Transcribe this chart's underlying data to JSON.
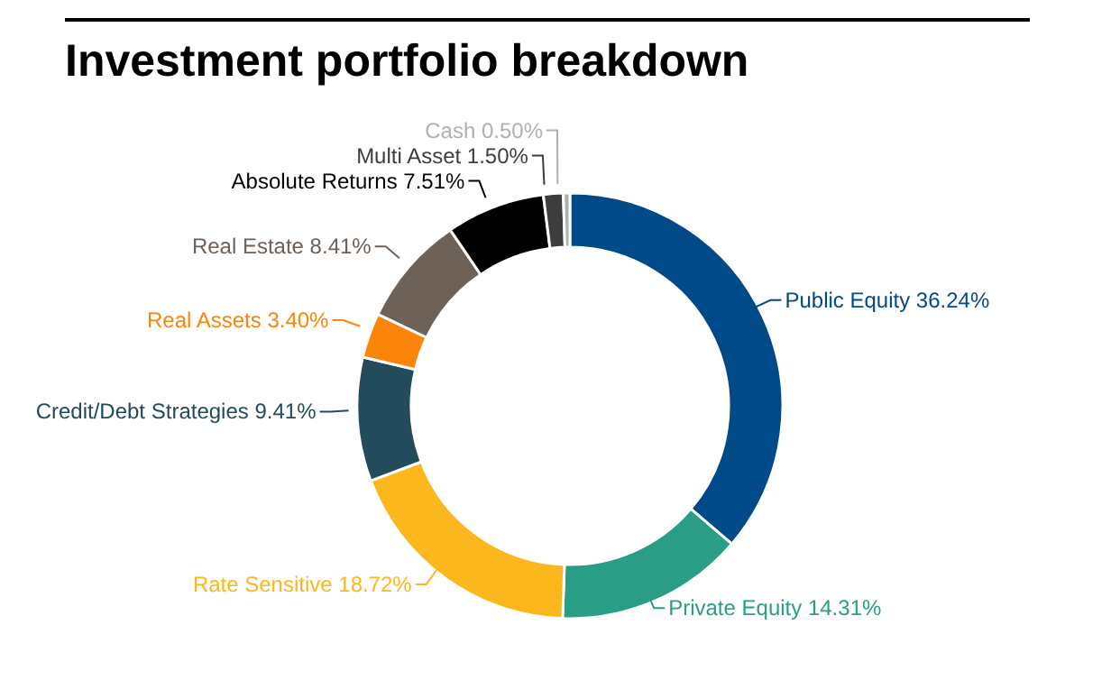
{
  "chart_data": {
    "type": "donut",
    "title": "Investment portfolio breakdown",
    "categories": [
      "Public Equity",
      "Private Equity",
      "Rate Sensitive",
      "Credit/Debt Strategies",
      "Real Assets",
      "Real Estate",
      "Absolute Returns",
      "Multi Asset",
      "Cash"
    ],
    "values": [
      36.24,
      14.31,
      18.72,
      9.41,
      3.4,
      8.41,
      7.51,
      1.5,
      0.5
    ],
    "value_labels": [
      "36.24%",
      "14.31%",
      "18.72%",
      "9.41%",
      "3.40%",
      "8.41%",
      "7.51%",
      "1.50%",
      "0.50%"
    ],
    "colors": [
      "#004a89",
      "#2a9d86",
      "#fcb71c",
      "#234b5b",
      "#fb8508",
      "#6e6158",
      "#000000",
      "#3d3d3d",
      "#b0b0b0"
    ]
  }
}
